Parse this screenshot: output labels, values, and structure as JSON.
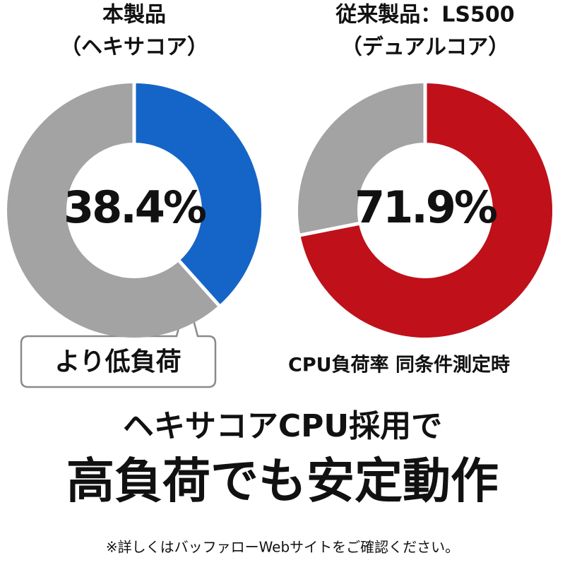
{
  "chart_data": [
    {
      "type": "donut",
      "title": "本製品",
      "subtitle": "（ヘキサコア）",
      "values": [
        38.4
      ],
      "value_labels": [
        "38.4%"
      ],
      "color": "#1565c8",
      "rest_color": "#a3a3a3"
    },
    {
      "type": "donut",
      "title": "従来製品：LS500",
      "subtitle": "（デュアルコア）",
      "values": [
        71.9
      ],
      "value_labels": [
        "71.9%"
      ],
      "color": "#c0101a",
      "rest_color": "#a3a3a3"
    }
  ],
  "callout": "より低負荷",
  "note": "CPU負荷率 同条件測定時",
  "headline": "ヘキサコアCPU採用で",
  "headline2": "高負荷でも安定動作",
  "footnote": "※詳しくはバッファローWebサイトをご確認ください。"
}
